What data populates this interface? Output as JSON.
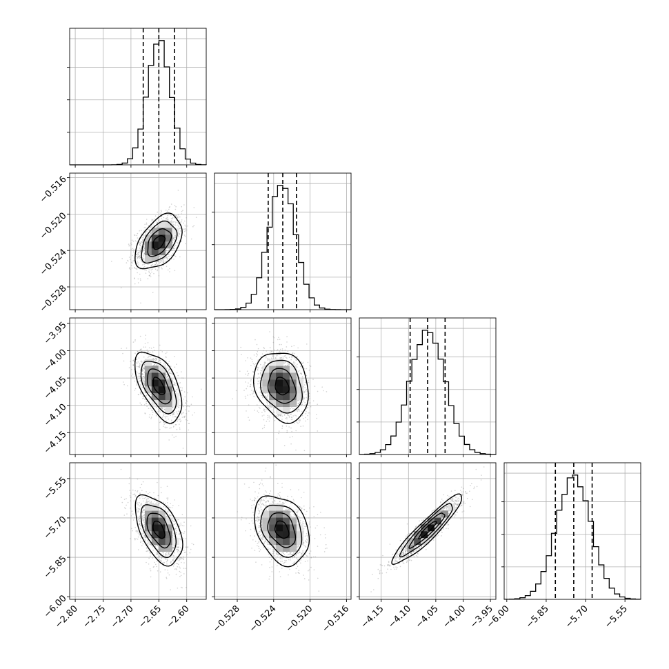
{
  "chart_data": {
    "type": "corner",
    "parameters": [
      {
        "range": [
          -2.81,
          -2.565
        ],
        "ticks": [
          -2.8,
          -2.75,
          -2.7,
          -2.65,
          -2.6
        ],
        "tick_labels": [
          "−2.80",
          "−2.75",
          "−2.70",
          "−2.65",
          "−2.60"
        ],
        "quantiles": [
          -2.678,
          -2.65,
          -2.622
        ],
        "mean": -2.65,
        "sd": 0.021
      },
      {
        "range": [
          -0.5305,
          -0.5155
        ],
        "ticks": [
          -0.528,
          -0.524,
          -0.52,
          -0.516
        ],
        "tick_labels": [
          "−0.528",
          "−0.524",
          "−0.520",
          "−0.516"
        ],
        "quantiles": [
          -0.5246,
          -0.523,
          -0.5215
        ],
        "mean": -0.5231,
        "sd": 0.0015
      },
      {
        "range": [
          -4.19,
          -3.94
        ],
        "ticks": [
          -4.15,
          -4.1,
          -4.05,
          -4.0,
          -3.95
        ],
        "tick_labels": [
          "−4.15",
          "−4.10",
          "−4.05",
          "−4.00",
          "−3.95"
        ],
        "quantiles": [
          -4.097,
          -4.065,
          -4.033
        ],
        "mean": -4.065,
        "sd": 0.032
      },
      {
        "range": [
          -6.01,
          -5.49
        ],
        "ticks": [
          -6.0,
          -5.85,
          -5.7,
          -5.55
        ],
        "tick_labels": [
          "−6.00",
          "−5.85",
          "−5.70",
          "−5.55"
        ],
        "quantiles": [
          -5.815,
          -5.745,
          -5.675
        ],
        "mean": -5.745,
        "sd": 0.066
      }
    ],
    "correlations": [
      [
        1.0,
        0.45,
        -0.55,
        -0.5
      ],
      [
        0.45,
        1.0,
        -0.2,
        -0.3
      ],
      [
        -0.55,
        -0.2,
        1.0,
        0.93
      ],
      [
        -0.5,
        -0.3,
        0.93,
        1.0
      ]
    ],
    "histogram_bins": 20,
    "contour_levels": [
      0.5,
      1.0,
      1.5,
      2.0
    ],
    "colors": {
      "background": "#ffffff",
      "line": "#000000",
      "grid": "#b0b0b0",
      "points": "#9a9a9a"
    },
    "grid": true
  }
}
